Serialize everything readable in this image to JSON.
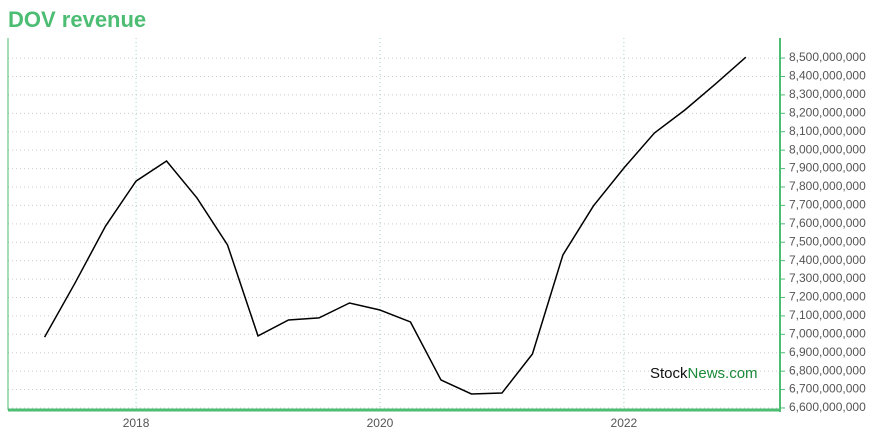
{
  "chart_data": {
    "type": "line",
    "title": "DOV revenue",
    "watermark": {
      "dark": "Stock",
      "green": "News.com"
    },
    "x": [
      2017.25,
      2017.5,
      2017.75,
      2018.0,
      2018.25,
      2018.5,
      2018.75,
      2019.0,
      2019.25,
      2019.5,
      2019.75,
      2020.0,
      2020.25,
      2020.5,
      2020.75,
      2021.0,
      2021.25,
      2021.5,
      2021.75,
      2022.0,
      2022.25,
      2022.5,
      2022.75,
      2023.0
    ],
    "series": [
      {
        "name": "DOV revenue",
        "color": "#000000",
        "values": [
          6985000000,
          7279000000,
          7588000000,
          7832000000,
          7941000000,
          7740000000,
          7485000000,
          6991000000,
          7078000000,
          7089000000,
          7170000000,
          7132000000,
          7067000000,
          6752000000,
          6676000000,
          6681000000,
          6893000000,
          7431000000,
          7697000000,
          7903000000,
          8093000000,
          8218000000,
          8359000000,
          8505000000
        ]
      }
    ],
    "xlim": [
      2016.95,
      2023.28
    ],
    "xticks": [
      2018,
      2020,
      2022
    ],
    "ylim": [
      6589000000,
      8609000000
    ],
    "yticks": [
      {
        "value": 6600000000,
        "label": "6,600,000,000"
      },
      {
        "value": 6700000000,
        "label": "6,700,000,000"
      },
      {
        "value": 6800000000,
        "label": "6,800,000,000"
      },
      {
        "value": 6900000000,
        "label": "6,900,000,000"
      },
      {
        "value": 7000000000,
        "label": "7,000,000,000"
      },
      {
        "value": 7100000000,
        "label": "7,100,000,000"
      },
      {
        "value": 7200000000,
        "label": "7,200,000,000"
      },
      {
        "value": 7300000000,
        "label": "7,300,000,000"
      },
      {
        "value": 7400000000,
        "label": "7,400,000,000"
      },
      {
        "value": 7500000000,
        "label": "7,500,000,000"
      },
      {
        "value": 7600000000,
        "label": "7,600,000,000"
      },
      {
        "value": 7700000000,
        "label": "7,700,000,000"
      },
      {
        "value": 7800000000,
        "label": "7,800,000,000"
      },
      {
        "value": 7900000000,
        "label": "7,900,000,000"
      },
      {
        "value": 8000000000,
        "label": "8,000,000,000"
      },
      {
        "value": 8100000000,
        "label": "8,100,000,000"
      },
      {
        "value": 8200000000,
        "label": "8,200,000,000"
      },
      {
        "value": 8300000000,
        "label": "8,300,000,000"
      },
      {
        "value": 8400000000,
        "label": "8,400,000,000"
      },
      {
        "value": 8500000000,
        "label": "8,500,000,000"
      }
    ],
    "grid": true,
    "accent": "#4dbd74"
  }
}
